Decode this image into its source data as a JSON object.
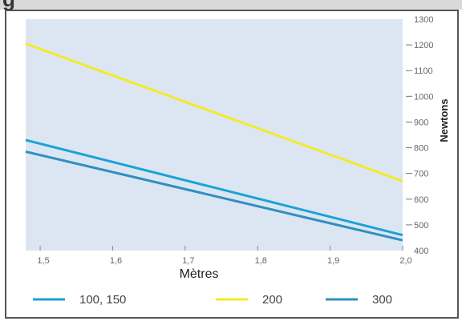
{
  "page": {
    "heading": "g"
  },
  "colors": {
    "plot_background": "#dce6f2",
    "frame": "#555555",
    "series_100_150": "#1aa3d4",
    "series_200": "#f2ea2a",
    "series_300": "#2f8fc0"
  },
  "chart_data": {
    "type": "line",
    "xlabel": "Mètres",
    "ylabel": "Newtons",
    "xlim": [
      1.48,
      2.0
    ],
    "ylim": [
      400,
      1300
    ],
    "x_ticks": [
      "1,5",
      "1,6",
      "1,7",
      "1,8",
      "1,9",
      "2,0"
    ],
    "x_tick_values": [
      1.5,
      1.6,
      1.7,
      1.8,
      1.9,
      2.0
    ],
    "y_ticks": [
      "400",
      "500",
      "600",
      "700",
      "800",
      "900",
      "1000",
      "1100",
      "1200",
      "1300"
    ],
    "y_tick_values": [
      400,
      500,
      600,
      700,
      800,
      900,
      1000,
      1100,
      1200,
      1300
    ],
    "grid": false,
    "legend_position": "bottom",
    "series": [
      {
        "name": "100, 150",
        "color": "#1aa3d4",
        "x": [
          1.48,
          2.0
        ],
        "y": [
          830,
          460
        ]
      },
      {
        "name": "200",
        "color": "#f2ea2a",
        "x": [
          1.48,
          2.0
        ],
        "y": [
          1205,
          670
        ]
      },
      {
        "name": "300",
        "color": "#2f8fc0",
        "x": [
          1.48,
          2.0
        ],
        "y": [
          785,
          440
        ]
      }
    ]
  }
}
